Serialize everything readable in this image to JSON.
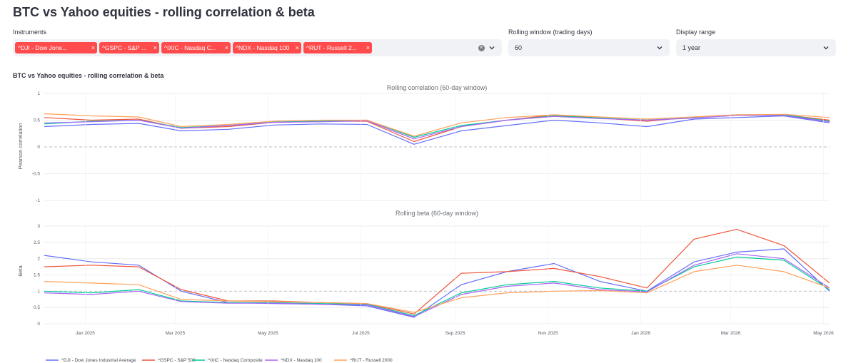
{
  "title": "BTC vs Yahoo equities - rolling correlation & beta",
  "controls": {
    "instruments": {
      "label": "Instruments",
      "chips": [
        {
          "label": "^DJI - Dow Jone...",
          "remove": "×"
        },
        {
          "label": "^GSPC - S&P 500",
          "remove": "×"
        },
        {
          "label": "^IXIC - Nasdaq C...",
          "remove": "×"
        },
        {
          "label": "^NDX - Nasdaq 100",
          "remove": "×"
        },
        {
          "label": "^RUT - Russell 2...",
          "remove": "×"
        }
      ]
    },
    "window": {
      "label": "Rolling window (trading days)",
      "value": "60"
    },
    "range": {
      "label": "Display range",
      "value": "1 year"
    }
  },
  "chart_title": "BTC vs Yahoo equities - rolling correlation & beta",
  "colors": {
    "dji": "#636efa",
    "gspc": "#ef553b",
    "ixic": "#00cc96",
    "ndx": "#ab63fa",
    "rut": "#ffa15a",
    "accent": "#ff4b4b"
  },
  "chart_data": [
    {
      "type": "line",
      "title": "Rolling correlation (60-day window)",
      "xlabel": "",
      "ylabel": "Pearson correlation",
      "ylim": [
        -1,
        1
      ],
      "yticks": [
        1,
        0.5,
        0,
        -0.5,
        -1
      ],
      "reference_line": 0,
      "grid": true,
      "x": [
        "2024-12-05",
        "2025-01-05",
        "2025-02-05",
        "2025-03-05",
        "2025-04-05",
        "2025-05-05",
        "2025-06-05",
        "2025-07-05",
        "2025-08-05",
        "2025-09-05",
        "2025-10-05",
        "2025-11-05",
        "2025-12-05",
        "2026-01-05",
        "2026-02-05",
        "2026-03-05",
        "2026-04-05",
        "2026-05-05"
      ],
      "xticks": [
        {
          "date": "2025-01-01",
          "label": "Jan 2025"
        },
        {
          "date": "2025-03-01",
          "label": "Mar 2025"
        },
        {
          "date": "2025-05-01",
          "label": "May 2025"
        },
        {
          "date": "2025-07-01",
          "label": "Jul 2025"
        },
        {
          "date": "2025-09-01",
          "label": "Sep 2025"
        },
        {
          "date": "2025-11-01",
          "label": "Nov 2025"
        },
        {
          "date": "2026-01-01",
          "label": "Jan 2026"
        },
        {
          "date": "2026-03-01",
          "label": "Mar 2026"
        },
        {
          "date": "2026-05-01",
          "label": "May 2026"
        }
      ],
      "series": [
        {
          "name": "^DJI - Dow Jones Industrial Average",
          "color": "#636efa",
          "values": [
            0.38,
            0.42,
            0.44,
            0.3,
            0.33,
            0.41,
            0.43,
            0.42,
            0.05,
            0.3,
            0.4,
            0.5,
            0.45,
            0.38,
            0.52,
            0.55,
            0.58,
            0.45
          ]
        },
        {
          "name": "^GSPC - S&P 500",
          "color": "#ef553b",
          "values": [
            0.55,
            0.5,
            0.52,
            0.35,
            0.38,
            0.46,
            0.48,
            0.48,
            0.1,
            0.38,
            0.5,
            0.6,
            0.54,
            0.48,
            0.56,
            0.6,
            0.6,
            0.5
          ]
        },
        {
          "name": "^IXIC - Nasdaq Composite",
          "color": "#00cc96",
          "values": [
            0.43,
            0.48,
            0.5,
            0.36,
            0.4,
            0.47,
            0.48,
            0.5,
            0.18,
            0.4,
            0.5,
            0.58,
            0.54,
            0.5,
            0.55,
            0.6,
            0.6,
            0.48
          ]
        },
        {
          "name": "^NDX - Nasdaq 100",
          "color": "#ab63fa",
          "values": [
            0.45,
            0.47,
            0.5,
            0.35,
            0.4,
            0.46,
            0.47,
            0.49,
            0.15,
            0.38,
            0.5,
            0.57,
            0.53,
            0.5,
            0.54,
            0.59,
            0.59,
            0.47
          ]
        },
        {
          "name": "^RUT - Russell 2000",
          "color": "#ffa15a",
          "values": [
            0.62,
            0.58,
            0.56,
            0.38,
            0.42,
            0.48,
            0.5,
            0.5,
            0.2,
            0.45,
            0.55,
            0.6,
            0.56,
            0.52,
            0.56,
            0.6,
            0.61,
            0.55
          ]
        }
      ]
    },
    {
      "type": "line",
      "title": "Rolling beta (60-day window)",
      "xlabel": "",
      "ylabel": "Beta",
      "ylim": [
        0,
        3.2
      ],
      "yticks": [
        3,
        2.5,
        2,
        1.5,
        1,
        0.5,
        0
      ],
      "reference_line": 1,
      "grid": true,
      "x": [
        "2024-12-05",
        "2025-01-05",
        "2025-02-05",
        "2025-03-05",
        "2025-04-05",
        "2025-05-05",
        "2025-06-05",
        "2025-07-05",
        "2025-08-05",
        "2025-09-05",
        "2025-10-05",
        "2025-11-05",
        "2025-12-05",
        "2026-01-05",
        "2026-02-05",
        "2026-03-05",
        "2026-04-05",
        "2026-05-05"
      ],
      "xticks": [
        {
          "date": "2025-01-01",
          "label": "Jan 2025"
        },
        {
          "date": "2025-03-01",
          "label": "Mar 2025"
        },
        {
          "date": "2025-05-01",
          "label": "May 2025"
        },
        {
          "date": "2025-07-01",
          "label": "Jul 2025"
        },
        {
          "date": "2025-09-01",
          "label": "Sep 2025"
        },
        {
          "date": "2025-11-01",
          "label": "Nov 2025"
        },
        {
          "date": "2026-01-01",
          "label": "Jan 2026"
        },
        {
          "date": "2026-03-01",
          "label": "Mar 2026"
        },
        {
          "date": "2026-05-01",
          "label": "May 2026"
        }
      ],
      "series": [
        {
          "name": "^DJI - Dow Jones Industrial Average",
          "color": "#636efa",
          "values": [
            2.1,
            1.9,
            1.8,
            1.0,
            0.65,
            0.62,
            0.6,
            0.55,
            0.2,
            1.2,
            1.6,
            1.85,
            1.3,
            1.0,
            1.9,
            2.2,
            2.3,
            1.0
          ]
        },
        {
          "name": "^GSPC - S&P 500",
          "color": "#ef553b",
          "values": [
            1.75,
            1.8,
            1.75,
            1.05,
            0.7,
            0.7,
            0.65,
            0.62,
            0.3,
            1.55,
            1.6,
            1.7,
            1.45,
            1.1,
            2.6,
            2.9,
            2.4,
            1.25
          ]
        },
        {
          "name": "^IXIC - Nasdaq Composite",
          "color": "#00cc96",
          "values": [
            1.0,
            0.95,
            1.05,
            0.7,
            0.65,
            0.65,
            0.62,
            0.6,
            0.25,
            0.95,
            1.2,
            1.3,
            1.1,
            1.0,
            1.75,
            2.05,
            1.95,
            1.05
          ]
        },
        {
          "name": "^NDX - Nasdaq 100",
          "color": "#ab63fa",
          "values": [
            0.95,
            0.9,
            1.0,
            0.68,
            0.63,
            0.63,
            0.6,
            0.58,
            0.22,
            0.9,
            1.15,
            1.25,
            1.05,
            0.98,
            1.8,
            2.15,
            2.0,
            1.1
          ]
        },
        {
          "name": "^RUT - Russell 2000",
          "color": "#ffa15a",
          "values": [
            1.3,
            1.25,
            1.2,
            0.75,
            0.7,
            0.68,
            0.65,
            0.62,
            0.35,
            0.8,
            0.95,
            1.0,
            1.02,
            0.95,
            1.6,
            1.8,
            1.6,
            1.1
          ]
        }
      ]
    }
  ]
}
